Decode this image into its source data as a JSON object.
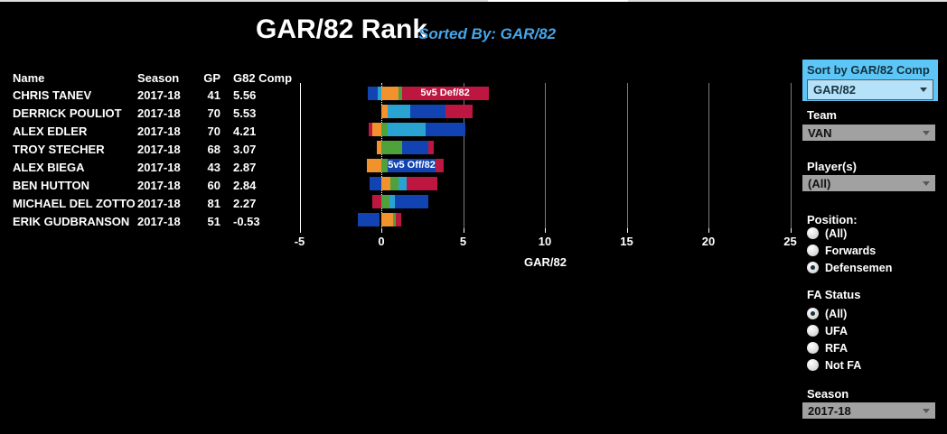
{
  "header": {
    "title": "GAR/82 Rank",
    "sorted_by": "Sorted By: GAR/82"
  },
  "table": {
    "columns": [
      "Name",
      "Season",
      "GP",
      "G82 Comp"
    ],
    "rows": [
      {
        "name": "CHRIS TANEV",
        "season": "2017-18",
        "gp": "41",
        "g82": "5.56"
      },
      {
        "name": "DERRICK POULIOT",
        "season": "2017-18",
        "gp": "70",
        "g82": "5.53"
      },
      {
        "name": "ALEX EDLER",
        "season": "2017-18",
        "gp": "70",
        "g82": "4.21"
      },
      {
        "name": "TROY STECHER",
        "season": "2017-18",
        "gp": "68",
        "g82": "3.07"
      },
      {
        "name": "ALEX BIEGA",
        "season": "2017-18",
        "gp": "43",
        "g82": "2.87"
      },
      {
        "name": "BEN HUTTON",
        "season": "2017-18",
        "gp": "60",
        "g82": "2.84"
      },
      {
        "name": "MICHAEL DEL ZOTTO",
        "season": "2017-18",
        "gp": "81",
        "g82": "2.27"
      },
      {
        "name": "ERIK GUDBRANSON",
        "season": "2017-18",
        "gp": "51",
        "g82": "-0.53"
      }
    ]
  },
  "chart_data": {
    "type": "bar",
    "orientation": "horizontal",
    "stacked": true,
    "title": "GAR/82 Rank",
    "xlabel": "GAR/82",
    "xlim": [
      -5,
      25
    ],
    "xticks": [
      -5,
      0,
      5,
      10,
      15,
      20,
      25
    ],
    "grid": "vertical",
    "players": [
      {
        "name": "CHRIS TANEV",
        "segments": [
          {
            "color": "blue",
            "from": -0.85,
            "to": -0.2
          },
          {
            "color": "teal",
            "from": -0.2,
            "to": 0
          },
          {
            "color": "orange",
            "from": 0,
            "to": 1.05
          },
          {
            "color": "green",
            "from": 1.05,
            "to": 1.25
          },
          {
            "color": "red",
            "from": 1.25,
            "to": 6.55,
            "label": "5v5 Def/82"
          }
        ]
      },
      {
        "name": "DERRICK POULIOT",
        "segments": [
          {
            "color": "orange",
            "from": 0,
            "to": 0.4
          },
          {
            "color": "teal",
            "from": 0.4,
            "to": 1.75
          },
          {
            "color": "blue",
            "from": 1.75,
            "to": 3.9
          },
          {
            "color": "red",
            "from": 3.9,
            "to": 5.6
          }
        ]
      },
      {
        "name": "ALEX EDLER",
        "segments": [
          {
            "color": "red",
            "from": -0.8,
            "to": -0.55
          },
          {
            "color": "orange",
            "from": -0.55,
            "to": 0
          },
          {
            "color": "green",
            "from": 0,
            "to": 0.4
          },
          {
            "color": "teal",
            "from": 0.4,
            "to": 2.7
          },
          {
            "color": "blue",
            "from": 2.7,
            "to": 5.15
          }
        ]
      },
      {
        "name": "TROY STECHER",
        "segments": [
          {
            "color": "orange",
            "from": -0.3,
            "to": 0
          },
          {
            "color": "green",
            "from": 0,
            "to": 1.25
          },
          {
            "color": "blue",
            "from": 1.25,
            "to": 2.85
          },
          {
            "color": "red",
            "from": 2.85,
            "to": 3.2
          }
        ]
      },
      {
        "name": "ALEX BIEGA",
        "segments": [
          {
            "color": "orange",
            "from": -0.9,
            "to": 0
          },
          {
            "color": "green",
            "from": 0,
            "to": 0.4
          },
          {
            "color": "blue",
            "from": 0.4,
            "to": 3.3,
            "label": "5v5 Off/82"
          },
          {
            "color": "red",
            "from": 3.3,
            "to": 3.8
          }
        ]
      },
      {
        "name": "BEN HUTTON",
        "segments": [
          {
            "color": "blue",
            "from": -0.7,
            "to": 0
          },
          {
            "color": "orange",
            "from": 0,
            "to": 0.55
          },
          {
            "color": "green",
            "from": 0.55,
            "to": 1.05
          },
          {
            "color": "teal",
            "from": 1.05,
            "to": 1.55
          },
          {
            "color": "red",
            "from": 1.55,
            "to": 3.45
          }
        ]
      },
      {
        "name": "MICHAEL DEL ZOTTO",
        "segments": [
          {
            "color": "red",
            "from": -0.55,
            "to": 0
          },
          {
            "color": "green",
            "from": 0,
            "to": 0.5
          },
          {
            "color": "teal",
            "from": 0.5,
            "to": 0.85
          },
          {
            "color": "blue",
            "from": 0.85,
            "to": 2.85
          }
        ]
      },
      {
        "name": "ERIK GUDBRANSON",
        "segments": [
          {
            "color": "blue",
            "from": -1.45,
            "to": -0.1
          },
          {
            "color": "orange",
            "from": 0,
            "to": 0.7
          },
          {
            "color": "green",
            "from": 0.7,
            "to": 0.9
          },
          {
            "color": "red",
            "from": 0.9,
            "to": 1.2
          }
        ]
      }
    ]
  },
  "sidebar": {
    "sort_panel": {
      "label": "Sort by GAR/82 Comp",
      "value": "GAR/82"
    },
    "team": {
      "label": "Team",
      "value": "VAN"
    },
    "players": {
      "label": "Player(s)",
      "value": "(All)"
    },
    "position": {
      "label": "Position:",
      "options": [
        {
          "label": "(All)",
          "selected": false
        },
        {
          "label": "Forwards",
          "selected": false
        },
        {
          "label": "Defensemen",
          "selected": true
        }
      ]
    },
    "fa_status": {
      "label": "FA Status",
      "options": [
        {
          "label": "(All)",
          "selected": true
        },
        {
          "label": "UFA",
          "selected": false
        },
        {
          "label": "RFA",
          "selected": false
        },
        {
          "label": "Not FA",
          "selected": false
        }
      ]
    },
    "season": {
      "label": "Season",
      "value": "2017-18"
    }
  },
  "colors": {
    "background": "#000000",
    "sorted_by_text": "#47a6ea",
    "sort_panel_bg": "#5ec6f7",
    "sort_dropdown_bg": "#b5e2f8",
    "dropdown_bg": "#a1a1a1",
    "gridline": "#7c7c7c",
    "axis_boundary": "#ffffff",
    "palette": {
      "blue": "#1144b2",
      "orange": "#f2922d",
      "green": "#4fa13c",
      "teal": "#29a4d2",
      "red": "#bd1640"
    }
  }
}
